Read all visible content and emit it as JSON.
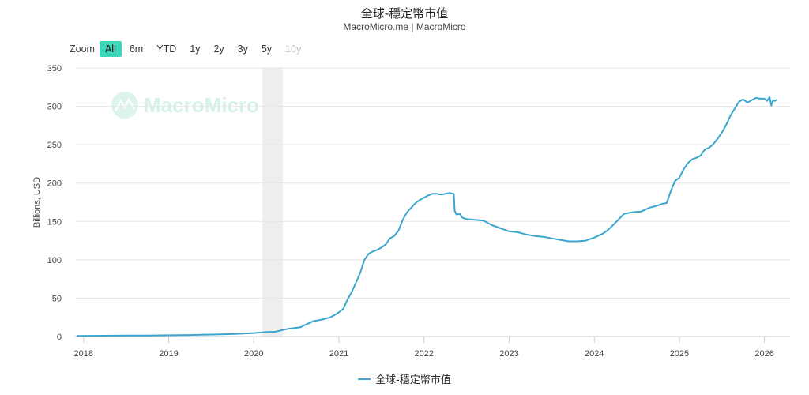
{
  "title": "全球-穩定幣市值",
  "subtitle": "MacroMicro.me | MacroMicro",
  "zoom": {
    "label": "Zoom",
    "buttons": [
      {
        "label": "All",
        "state": "active"
      },
      {
        "label": "6m",
        "state": "normal"
      },
      {
        "label": "YTD",
        "state": "normal"
      },
      {
        "label": "1y",
        "state": "normal"
      },
      {
        "label": "2y",
        "state": "normal"
      },
      {
        "label": "3y",
        "state": "normal"
      },
      {
        "label": "5y",
        "state": "normal"
      },
      {
        "label": "10y",
        "state": "disabled"
      }
    ]
  },
  "watermark": "MacroMicro",
  "colors": {
    "line": "#3aa6cf",
    "grid": "#e6e6e6",
    "band": "#eeeeee",
    "accent": "#3cd6b8"
  },
  "chart_data": {
    "type": "line",
    "title": "全球-穩定幣市值",
    "subtitle": "MacroMicro.me | MacroMicro",
    "ylabel": "Billions, USD",
    "xlabel": "",
    "ylim": [
      0,
      350
    ],
    "yticks": [
      0,
      50,
      100,
      150,
      200,
      250,
      300,
      350
    ],
    "xlim": [
      2017.9,
      2026.3
    ],
    "xticks": [
      "2018",
      "2019",
      "2020",
      "2021",
      "2022",
      "2023",
      "2024",
      "2025",
      "2026"
    ],
    "grid": true,
    "legend_position": "bottom",
    "shaded_range": [
      2020.1,
      2020.34
    ],
    "series": [
      {
        "name": "全球-穩定幣市值",
        "x": [
          2017.92,
          2018.25,
          2018.5,
          2018.75,
          2019.0,
          2019.25,
          2019.5,
          2019.75,
          2020.0,
          2020.1,
          2020.15,
          2020.25,
          2020.4,
          2020.55,
          2020.6,
          2020.7,
          2020.8,
          2020.9,
          2020.98,
          2021.05,
          2021.1,
          2021.15,
          2021.2,
          2021.25,
          2021.3,
          2021.35,
          2021.4,
          2021.45,
          2021.5,
          2021.55,
          2021.6,
          2021.65,
          2021.7,
          2021.75,
          2021.8,
          2021.85,
          2021.9,
          2021.95,
          2022.0,
          2022.05,
          2022.1,
          2022.15,
          2022.2,
          2022.25,
          2022.3,
          2022.35,
          2022.36,
          2022.38,
          2022.42,
          2022.45,
          2022.5,
          2022.6,
          2022.7,
          2022.75,
          2022.8,
          2022.9,
          2023.0,
          2023.1,
          2023.2,
          2023.3,
          2023.4,
          2023.5,
          2023.6,
          2023.7,
          2023.8,
          2023.9,
          2024.0,
          2024.1,
          2024.15,
          2024.2,
          2024.28,
          2024.35,
          2024.45,
          2024.55,
          2024.65,
          2024.72,
          2024.8,
          2024.85,
          2024.9,
          2024.95,
          2025.0,
          2025.05,
          2025.1,
          2025.15,
          2025.2,
          2025.25,
          2025.3,
          2025.35,
          2025.4,
          2025.45,
          2025.5,
          2025.55,
          2025.6,
          2025.65,
          2025.7,
          2025.75,
          2025.8,
          2025.85,
          2025.9,
          2025.95,
          2026.0,
          2026.03,
          2026.06,
          2026.08,
          2026.1,
          2026.12,
          2026.15
        ],
        "values": [
          0.8,
          1.0,
          1.2,
          1.3,
          1.6,
          2.0,
          2.6,
          3.2,
          4.5,
          5.5,
          6.0,
          6.2,
          10.0,
          12.0,
          15.0,
          20.0,
          22.0,
          25.0,
          30.0,
          36.0,
          48.0,
          58.0,
          70.0,
          83.0,
          100.0,
          108.0,
          111.0,
          113.0,
          116.0,
          120.0,
          128.0,
          131.0,
          138.0,
          152.0,
          162.0,
          168.0,
          174.0,
          178.0,
          181.0,
          184.0,
          186.0,
          186.0,
          185.0,
          186.0,
          187.0,
          186.0,
          164.0,
          159.0,
          160.0,
          155.0,
          153.0,
          152.0,
          151.0,
          148.0,
          145.0,
          141.0,
          137.0,
          136.0,
          133.0,
          131.0,
          130.0,
          128.0,
          126.0,
          124.0,
          124.0,
          125.0,
          129.0,
          134.0,
          138.0,
          143.0,
          152.0,
          160.0,
          162.0,
          163.0,
          168.0,
          170.0,
          173.0,
          174.0,
          190.0,
          203.0,
          207.0,
          218.0,
          226.0,
          231.0,
          233.0,
          236.0,
          244.0,
          246.0,
          251.0,
          258.0,
          266.0,
          276.0,
          288.0,
          297.0,
          306.0,
          309.0,
          305.0,
          308.0,
          311.0,
          310.0,
          310.0,
          307.0,
          312.0,
          301.0,
          308.0,
          307.0,
          309.0
        ]
      }
    ]
  }
}
